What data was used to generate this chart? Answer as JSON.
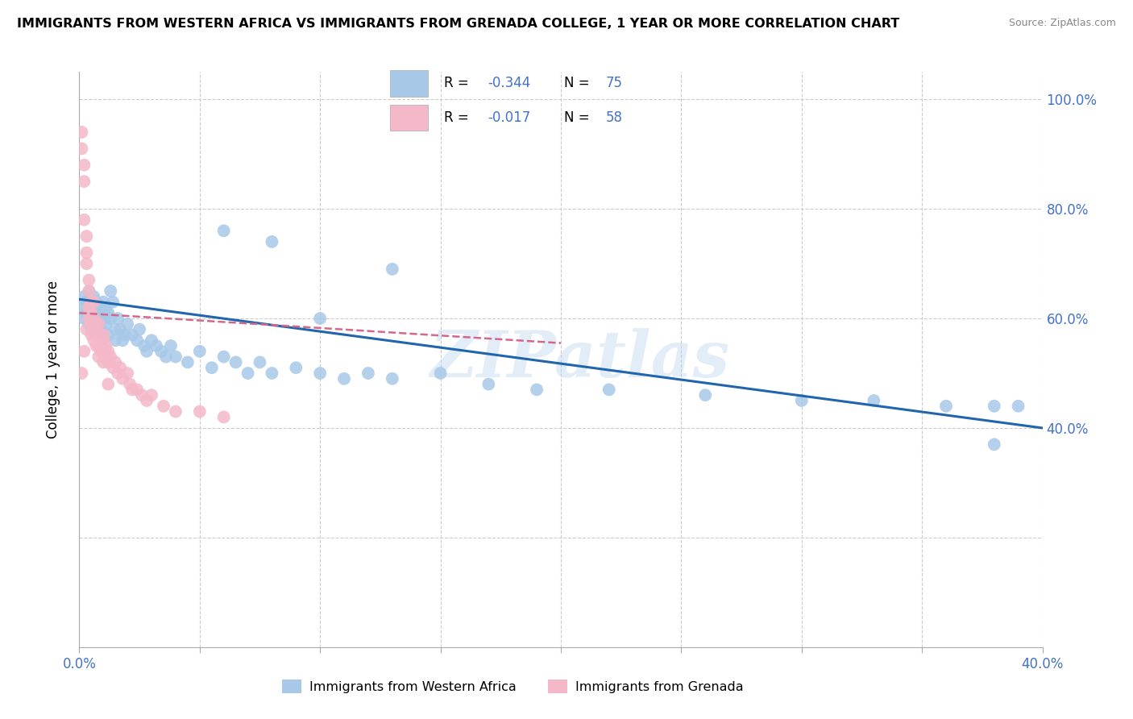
{
  "title": "IMMIGRANTS FROM WESTERN AFRICA VS IMMIGRANTS FROM GRENADA COLLEGE, 1 YEAR OR MORE CORRELATION CHART",
  "source": "Source: ZipAtlas.com",
  "ylabel": "College, 1 year or more",
  "xlim": [
    0.0,
    0.4
  ],
  "ylim": [
    0.0,
    1.05
  ],
  "right_yticks": [
    1.0,
    0.8,
    0.6,
    0.4
  ],
  "blue_label": "Immigrants from Western Africa",
  "pink_label": "Immigrants from Grenada",
  "blue_R": -0.344,
  "blue_N": 75,
  "pink_R": -0.017,
  "pink_N": 58,
  "blue_color": "#a8c8e8",
  "pink_color": "#f4b8c8",
  "blue_line_color": "#2166ac",
  "pink_line_color": "#d4688a",
  "value_color": "#4472c4",
  "watermark": "ZIPatlas",
  "blue_x": [
    0.001,
    0.002,
    0.002,
    0.003,
    0.003,
    0.004,
    0.004,
    0.005,
    0.005,
    0.005,
    0.006,
    0.006,
    0.006,
    0.007,
    0.007,
    0.008,
    0.008,
    0.009,
    0.009,
    0.01,
    0.01,
    0.01,
    0.011,
    0.011,
    0.012,
    0.012,
    0.013,
    0.013,
    0.014,
    0.015,
    0.015,
    0.016,
    0.017,
    0.018,
    0.019,
    0.02,
    0.022,
    0.024,
    0.025,
    0.027,
    0.028,
    0.03,
    0.032,
    0.034,
    0.036,
    0.038,
    0.04,
    0.045,
    0.05,
    0.055,
    0.06,
    0.065,
    0.07,
    0.075,
    0.08,
    0.09,
    0.1,
    0.11,
    0.12,
    0.13,
    0.15,
    0.17,
    0.19,
    0.22,
    0.26,
    0.3,
    0.33,
    0.36,
    0.38,
    0.39,
    0.06,
    0.08,
    0.1,
    0.13,
    0.38
  ],
  "blue_y": [
    0.62,
    0.6,
    0.64,
    0.61,
    0.63,
    0.59,
    0.65,
    0.58,
    0.62,
    0.6,
    0.64,
    0.61,
    0.58,
    0.63,
    0.6,
    0.62,
    0.59,
    0.61,
    0.58,
    0.6,
    0.63,
    0.57,
    0.62,
    0.59,
    0.61,
    0.57,
    0.65,
    0.6,
    0.63,
    0.58,
    0.56,
    0.6,
    0.58,
    0.56,
    0.57,
    0.59,
    0.57,
    0.56,
    0.58,
    0.55,
    0.54,
    0.56,
    0.55,
    0.54,
    0.53,
    0.55,
    0.53,
    0.52,
    0.54,
    0.51,
    0.53,
    0.52,
    0.5,
    0.52,
    0.5,
    0.51,
    0.5,
    0.49,
    0.5,
    0.49,
    0.5,
    0.48,
    0.47,
    0.47,
    0.46,
    0.45,
    0.45,
    0.44,
    0.44,
    0.44,
    0.76,
    0.74,
    0.6,
    0.69,
    0.37
  ],
  "pink_x": [
    0.001,
    0.001,
    0.002,
    0.002,
    0.002,
    0.003,
    0.003,
    0.003,
    0.004,
    0.004,
    0.004,
    0.005,
    0.005,
    0.005,
    0.005,
    0.006,
    0.006,
    0.006,
    0.007,
    0.007,
    0.007,
    0.008,
    0.008,
    0.008,
    0.009,
    0.009,
    0.01,
    0.01,
    0.01,
    0.011,
    0.011,
    0.012,
    0.012,
    0.013,
    0.014,
    0.015,
    0.016,
    0.017,
    0.018,
    0.02,
    0.021,
    0.022,
    0.024,
    0.026,
    0.028,
    0.03,
    0.035,
    0.04,
    0.05,
    0.06,
    0.001,
    0.002,
    0.003,
    0.004,
    0.006,
    0.008,
    0.01,
    0.012
  ],
  "pink_y": [
    0.94,
    0.91,
    0.88,
    0.85,
    0.78,
    0.75,
    0.72,
    0.7,
    0.67,
    0.65,
    0.62,
    0.63,
    0.61,
    0.59,
    0.57,
    0.6,
    0.58,
    0.56,
    0.59,
    0.57,
    0.55,
    0.57,
    0.55,
    0.53,
    0.56,
    0.54,
    0.56,
    0.54,
    0.52,
    0.55,
    0.53,
    0.54,
    0.52,
    0.53,
    0.51,
    0.52,
    0.5,
    0.51,
    0.49,
    0.5,
    0.48,
    0.47,
    0.47,
    0.46,
    0.45,
    0.46,
    0.44,
    0.43,
    0.43,
    0.42,
    0.5,
    0.54,
    0.58,
    0.6,
    0.63,
    0.59,
    0.57,
    0.48
  ]
}
